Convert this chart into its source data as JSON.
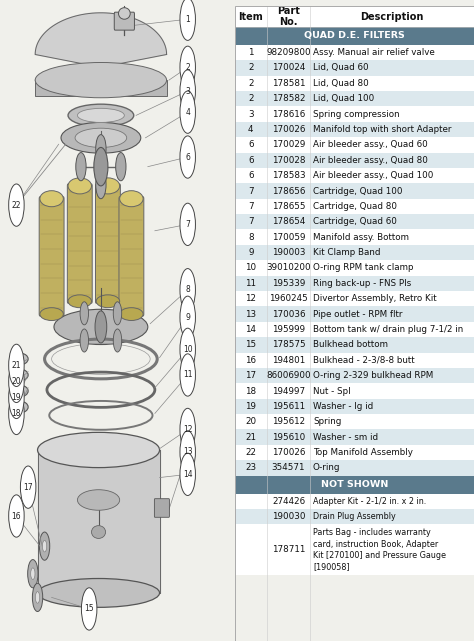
{
  "bg_color": "#f0f0eb",
  "section_header_color": "#5a7a8c",
  "alt_row_color": "#dce8ed",
  "white_row_color": "#ffffff",
  "columns": [
    "Item",
    "Part\nNo.",
    "Description"
  ],
  "rows": [
    {
      "item": "1",
      "part": "98209800",
      "desc": "Assy. Manual air relief valve",
      "shade": false
    },
    {
      "item": "2",
      "part": "170024",
      "desc": "Lid, Quad 60",
      "shade": true
    },
    {
      "item": "2",
      "part": "178581",
      "desc": "Lid, Quad 80",
      "shade": false
    },
    {
      "item": "2",
      "part": "178582",
      "desc": "Lid, Quad 100",
      "shade": true
    },
    {
      "item": "3",
      "part": "178616",
      "desc": "Spring compression",
      "shade": false
    },
    {
      "item": "4",
      "part": "170026",
      "desc": "Manifold top with short Adapter",
      "shade": true
    },
    {
      "item": "6",
      "part": "170029",
      "desc": "Air bleeder assy., Quad 60",
      "shade": false
    },
    {
      "item": "6",
      "part": "170028",
      "desc": "Air bleeder assy., Quad 80",
      "shade": true
    },
    {
      "item": "6",
      "part": "178583",
      "desc": "Air bleeder assy., Quad 100",
      "shade": false
    },
    {
      "item": "7",
      "part": "178656",
      "desc": "Cartridge, Quad 100",
      "shade": true
    },
    {
      "item": "7",
      "part": "178655",
      "desc": "Cartridge, Quad 80",
      "shade": false
    },
    {
      "item": "7",
      "part": "178654",
      "desc": "Cartridge, Quad 60",
      "shade": true
    },
    {
      "item": "8",
      "part": "170059",
      "desc": "Manifold assy. Bottom",
      "shade": false
    },
    {
      "item": "9",
      "part": "190003",
      "desc": "Kit Clamp Band",
      "shade": true
    },
    {
      "item": "10",
      "part": "39010200",
      "desc": "O-ring RPM tank clamp",
      "shade": false
    },
    {
      "item": "11",
      "part": "195339",
      "desc": "Ring back-up - FNS Pls",
      "shade": true
    },
    {
      "item": "12",
      "part": "1960245",
      "desc": "Divertor Assembly, Retro Kit",
      "shade": false
    },
    {
      "item": "13",
      "part": "170036",
      "desc": "Pipe outlet - RPM fltr",
      "shade": true
    },
    {
      "item": "14",
      "part": "195999",
      "desc": "Bottom tank w/ drain plug 7-1/2 in",
      "shade": false
    },
    {
      "item": "15",
      "part": "178575",
      "desc": "Bulkhead bottom",
      "shade": true
    },
    {
      "item": "16",
      "part": "194801",
      "desc": "Bulkhead - 2-3/8-8 butt",
      "shade": false
    },
    {
      "item": "17",
      "part": "86006900",
      "desc": "O-ring 2-329 bulkhead RPM",
      "shade": true
    },
    {
      "item": "18",
      "part": "194997",
      "desc": "Nut - Spl",
      "shade": false
    },
    {
      "item": "19",
      "part": "195611",
      "desc": "Washer - lg id",
      "shade": true
    },
    {
      "item": "20",
      "part": "195612",
      "desc": "Spring",
      "shade": false
    },
    {
      "item": "21",
      "part": "195610",
      "desc": "Washer - sm id",
      "shade": true
    },
    {
      "item": "22",
      "part": "170026",
      "desc": "Top Manifold Assembly",
      "shade": false
    },
    {
      "item": "23",
      "part": "354571",
      "desc": "O-ring",
      "shade": true
    }
  ],
  "not_shown": [
    {
      "item": "",
      "part": "274426",
      "desc": "Adapter Kit - 2-1/2 in. x 2 in.",
      "shade": false
    },
    {
      "item": "",
      "part": "190030",
      "desc": "Drain Plug Assembly",
      "shade": true
    },
    {
      "item": "",
      "part": "178711",
      "desc": "Parts Bag - includes warranty\ncard, instruction Book, Adapter\nKit [270100] and Pressure Gauge\n[190058]",
      "shade": false
    }
  ],
  "font_size_header": 7.0,
  "font_size_row": 6.3,
  "font_size_section": 6.8
}
